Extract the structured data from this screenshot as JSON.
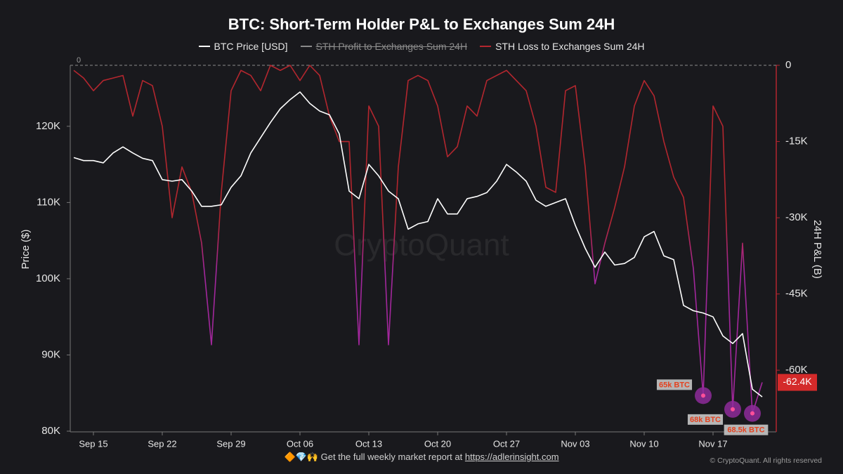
{
  "chart_data": {
    "type": "line",
    "title": "BTC: Short-Term Holder P&L to Exchanges Sum 24H",
    "categories": [
      null,
      null,
      "Sep 15",
      null,
      null,
      null,
      null,
      null,
      null,
      "Sep 22",
      null,
      null,
      null,
      null,
      null,
      null,
      "Sep 29",
      null,
      null,
      null,
      null,
      null,
      null,
      "Oct 06",
      null,
      null,
      null,
      null,
      null,
      null,
      "Oct 13",
      null,
      null,
      null,
      null,
      null,
      null,
      "Oct 20",
      null,
      null,
      null,
      null,
      null,
      null,
      "Oct 27",
      null,
      null,
      null,
      null,
      null,
      null,
      "Nov 03",
      null,
      null,
      null,
      null,
      null,
      null,
      "Nov 10",
      null,
      null,
      null,
      null,
      null,
      null,
      "Nov 17",
      null,
      null,
      null,
      null,
      null
    ],
    "series": [
      {
        "name": "BTC Price [USD]",
        "color": "#ffffff",
        "axis": "y",
        "values": [
          115900,
          115500,
          115500,
          115200,
          116500,
          117300,
          116500,
          115800,
          115500,
          113000,
          112800,
          113000,
          111500,
          109500,
          109500,
          109700,
          112000,
          113500,
          116500,
          118500,
          120500,
          122300,
          123500,
          124500,
          123000,
          122000,
          121500,
          119000,
          111500,
          110500,
          115000,
          113500,
          111500,
          110500,
          106500,
          107200,
          107500,
          110500,
          108500,
          108500,
          110500,
          110800,
          111300,
          112800,
          115000,
          114000,
          112800,
          110300,
          109500,
          110000,
          110500,
          107000,
          104000,
          101500,
          103500,
          101800,
          102000,
          102800,
          105500,
          106200,
          103000,
          102500,
          96500,
          95800,
          95500,
          95000,
          92500,
          91500,
          92800,
          85500,
          84500
        ]
      },
      {
        "name": "STH Profit to Exchanges Sum 24H",
        "color": "#8a8a8a",
        "hidden": true
      },
      {
        "name": "STH Loss to Exchanges Sum 24H",
        "color": "#b3262e",
        "color_low": "#a2279c",
        "axis": "y2",
        "values": [
          -1000,
          -2500,
          -5000,
          -3000,
          -2500,
          -2000,
          -10000,
          -3000,
          -4000,
          -12000,
          -30000,
          -20000,
          -25000,
          -35000,
          -55000,
          -25000,
          -5000,
          -1000,
          -2000,
          -5000,
          0,
          -1000,
          0,
          -3000,
          0,
          -2000,
          -10000,
          -15000,
          -15000,
          -55000,
          -8000,
          -12000,
          -55000,
          -20000,
          -3000,
          -2000,
          -3000,
          -8000,
          -18000,
          -16000,
          -8000,
          -10000,
          -3000,
          -2000,
          -1000,
          -3000,
          -5000,
          -12000,
          -24000,
          -25000,
          -5000,
          -4000,
          -20000,
          -43000,
          -35000,
          -28000,
          -20000,
          -8000,
          -3000,
          -6000,
          -15000,
          -22000,
          -26000,
          -40000,
          -65000,
          -8000,
          -12000,
          -67700,
          -35000,
          -68500,
          -62400
        ],
        "value_labels": [
          null,
          null,
          null,
          null,
          null,
          null,
          null,
          null,
          null,
          null,
          null,
          null,
          null,
          null,
          null,
          null,
          null,
          null,
          null,
          null,
          null,
          null,
          null,
          null,
          null,
          null,
          null,
          null,
          null,
          null,
          null,
          null,
          null,
          null,
          null,
          null,
          null,
          null,
          null,
          null,
          null,
          null,
          null,
          null,
          null,
          null,
          null,
          null,
          null,
          null,
          null,
          null,
          null,
          null,
          null,
          null,
          null,
          null,
          null,
          null,
          null,
          null,
          null,
          null,
          null,
          null,
          null,
          null,
          null,
          null,
          "-62.4K"
        ]
      }
    ],
    "ylabel": "Price ($)",
    "y2label": "24H P&L (B)",
    "ylim": [
      80000,
      128000
    ],
    "yticks": [
      {
        "value": 80000,
        "label": "80K"
      },
      {
        "value": 90000,
        "label": "90K"
      },
      {
        "value": 100000,
        "label": "100K"
      },
      {
        "value": 110000,
        "label": "110K"
      },
      {
        "value": 120000,
        "label": "120K"
      }
    ],
    "y2lim": [
      -72000,
      0
    ],
    "y2ticks": [
      0,
      {
        "value": -15000,
        "label": "-15K"
      },
      {
        "value": -30000,
        "label": "-30K"
      },
      {
        "value": -45000,
        "label": "-45K"
      },
      {
        "value": -60000,
        "label": "-60K"
      }
    ],
    "annotations": [
      "65k BTC",
      "68k BTC",
      "68.5k BTC"
    ],
    "watermark": "CryptoQuant",
    "footer": {
      "emoji": "🔶💎🙌",
      "text": "Get the full weekly market report at",
      "link": "https://adlerinsight.com"
    },
    "copyright": "© CryptoQuant. All rights reserved"
  }
}
